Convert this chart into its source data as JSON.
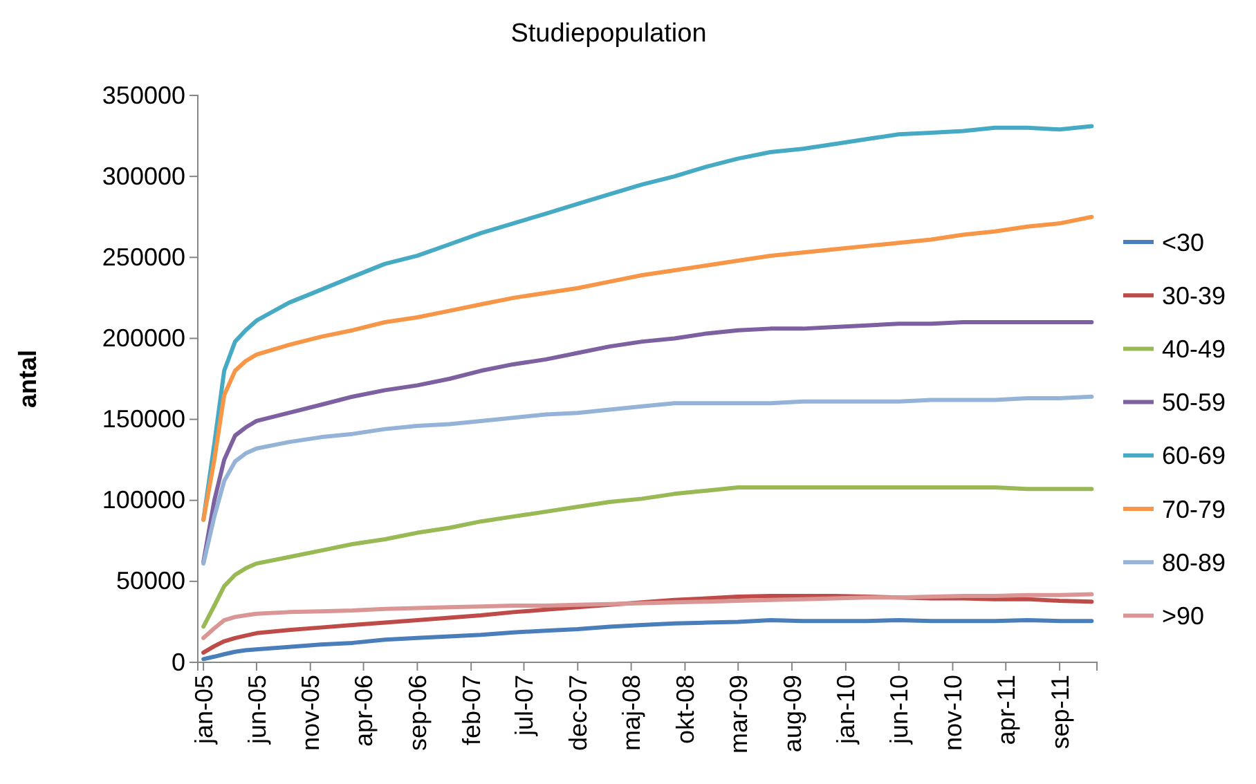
{
  "chart_data": {
    "type": "line",
    "title": "Studiepopulation",
    "ylabel": "antal",
    "legend": "right",
    "grid": false,
    "x": [
      "2005-01",
      "2005-02",
      "2005-03",
      "2005-04",
      "2005-05",
      "2005-06",
      "2005-09",
      "2005-12",
      "2006-03",
      "2006-06",
      "2006-09",
      "2006-12",
      "2007-03",
      "2007-06",
      "2007-09",
      "2007-12",
      "2008-03",
      "2008-06",
      "2008-09",
      "2008-12",
      "2009-03",
      "2009-06",
      "2009-09",
      "2009-12",
      "2010-03",
      "2010-06",
      "2010-09",
      "2010-12",
      "2011-03",
      "2011-06",
      "2011-09",
      "2011-12"
    ],
    "xlim": [
      "2004-12-16",
      "2011-12-16"
    ],
    "xticks": [
      {
        "value": "2005-01",
        "label": "jan-05"
      },
      {
        "value": "2005-06",
        "label": "jun-05"
      },
      {
        "value": "2005-11",
        "label": "nov-05"
      },
      {
        "value": "2006-04",
        "label": "apr-06"
      },
      {
        "value": "2006-09",
        "label": "sep-06"
      },
      {
        "value": "2007-02",
        "label": "feb-07"
      },
      {
        "value": "2007-07",
        "label": "jul-07"
      },
      {
        "value": "2007-12",
        "label": "dec-07"
      },
      {
        "value": "2008-05",
        "label": "maj-08"
      },
      {
        "value": "2008-10",
        "label": "okt-08"
      },
      {
        "value": "2009-03",
        "label": "mar-09"
      },
      {
        "value": "2009-08",
        "label": "aug-09"
      },
      {
        "value": "2010-01",
        "label": "jan-10"
      },
      {
        "value": "2010-06",
        "label": "jun-10"
      },
      {
        "value": "2010-11",
        "label": "nov-10"
      },
      {
        "value": "2011-04",
        "label": "apr-11"
      },
      {
        "value": "2011-09",
        "label": "sep-11"
      }
    ],
    "ylim": [
      0,
      350000
    ],
    "yticks": [
      0,
      50000,
      100000,
      150000,
      200000,
      250000,
      300000,
      350000
    ],
    "series": [
      {
        "name": "<30",
        "color": "#4a7ebb",
        "values": [
          2000,
          3500,
          5000,
          6500,
          7500,
          8000,
          9500,
          11000,
          12000,
          14000,
          15000,
          16000,
          17000,
          18500,
          19500,
          20500,
          22000,
          23000,
          24000,
          24500,
          25000,
          26000,
          25500,
          25500,
          25500,
          26000,
          25500,
          25500,
          25500,
          26000,
          25500,
          25500
        ]
      },
      {
        "name": "30-39",
        "color": "#be4b48",
        "values": [
          6000,
          10000,
          13000,
          15000,
          16500,
          18000,
          20000,
          21500,
          23000,
          24500,
          26000,
          27500,
          29000,
          31000,
          32500,
          34000,
          35500,
          37000,
          38500,
          39500,
          40500,
          41000,
          41000,
          41000,
          40500,
          40000,
          39500,
          39500,
          39000,
          39000,
          38000,
          37500
        ]
      },
      {
        "name": "40-49",
        "color": "#98b954",
        "values": [
          22000,
          35000,
          47000,
          54000,
          58000,
          61000,
          65000,
          69000,
          73000,
          76000,
          80000,
          83000,
          87000,
          90000,
          93000,
          96000,
          99000,
          101000,
          104000,
          106000,
          108000,
          108000,
          108000,
          108000,
          108000,
          108000,
          108000,
          108000,
          108000,
          107000,
          107000,
          107000
        ]
      },
      {
        "name": "50-59",
        "color": "#7d60a0",
        "values": [
          62000,
          100000,
          125000,
          140000,
          145000,
          149000,
          154000,
          159000,
          164000,
          168000,
          171000,
          175000,
          180000,
          184000,
          187000,
          191000,
          195000,
          198000,
          200000,
          203000,
          205000,
          206000,
          206000,
          207000,
          208000,
          209000,
          209000,
          210000,
          210000,
          210000,
          210000,
          210000
        ]
      },
      {
        "name": "60-69",
        "color": "#46aac5",
        "values": [
          88000,
          135000,
          180000,
          198000,
          205000,
          211000,
          222000,
          230000,
          238000,
          246000,
          251000,
          258000,
          265000,
          271000,
          277000,
          283000,
          289000,
          295000,
          300000,
          306000,
          311000,
          315000,
          317000,
          320000,
          323000,
          326000,
          327000,
          328000,
          330000,
          330000,
          329000,
          331000
        ]
      },
      {
        "name": "70-79",
        "color": "#f79646",
        "values": [
          88000,
          125000,
          165000,
          180000,
          186000,
          190000,
          196000,
          201000,
          205000,
          210000,
          213000,
          217000,
          221000,
          225000,
          228000,
          231000,
          235000,
          239000,
          242000,
          245000,
          248000,
          251000,
          253000,
          255000,
          257000,
          259000,
          261000,
          264000,
          266000,
          269000,
          271000,
          275000
        ]
      },
      {
        "name": "80-89",
        "color": "#95b3d7",
        "values": [
          61000,
          90000,
          112000,
          124000,
          129000,
          132000,
          136000,
          139000,
          141000,
          144000,
          146000,
          147000,
          149000,
          151000,
          153000,
          154000,
          156000,
          158000,
          160000,
          160000,
          160000,
          160000,
          161000,
          161000,
          161000,
          161000,
          162000,
          162000,
          162000,
          163000,
          163000,
          164000
        ]
      },
      {
        "name": ">90",
        "color": "#d99694",
        "values": [
          15000,
          21000,
          26000,
          28000,
          29000,
          30000,
          31000,
          31500,
          32000,
          33000,
          33500,
          34000,
          34500,
          35000,
          35000,
          35500,
          36000,
          36500,
          37000,
          37500,
          38000,
          38500,
          39000,
          39500,
          40000,
          40000,
          40500,
          41000,
          41000,
          41500,
          41500,
          42000
        ]
      }
    ]
  }
}
